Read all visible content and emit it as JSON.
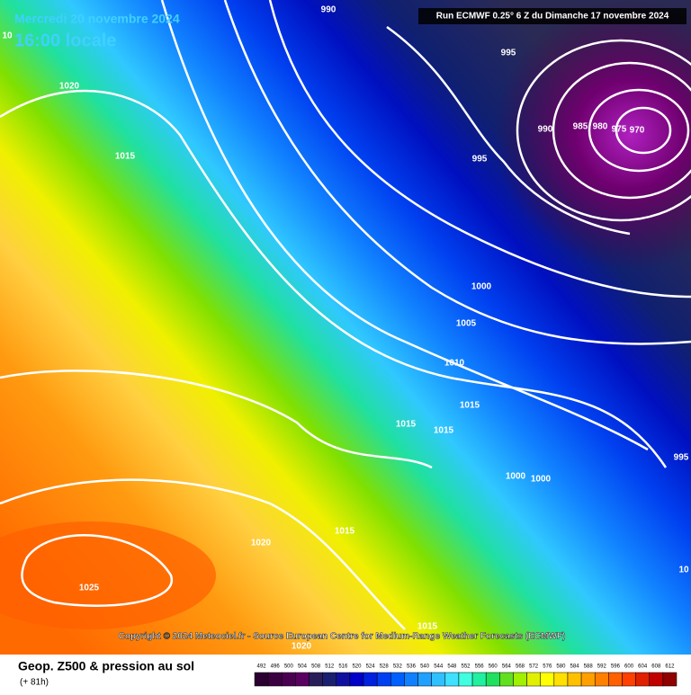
{
  "header": {
    "date": "Mercredi 20 novembre 2024",
    "time": "16:00 locale",
    "run": "Run ECMWF 0.25° 6 Z du Dimanche 17 novembre 2024"
  },
  "isobars": {
    "labels": [
      "10",
      "990",
      "1020",
      "1015",
      "995",
      "990",
      "985",
      "980",
      "975",
      "970",
      "995",
      "1000",
      "1005",
      "1010",
      "1015",
      "1015",
      "1015",
      "1000",
      "1000",
      "995",
      "10",
      "1015",
      "1020",
      "1025",
      "1015",
      "1020"
    ]
  },
  "copyright": "Copyright © 2024 Meteociel.fr - Source European Centre for Medium-Range Weather Forecasts (ECMWF)",
  "footer": {
    "title": "Geop. Z500 & pression au sol",
    "lead": "(+ 81h)"
  },
  "scale": {
    "labels": [
      "492",
      "496",
      "500",
      "504",
      "508",
      "512",
      "516",
      "520",
      "524",
      "528",
      "532",
      "536",
      "540",
      "544",
      "548",
      "552",
      "556",
      "560",
      "564",
      "568",
      "572",
      "576",
      "580",
      "584",
      "588",
      "592",
      "596",
      "600",
      "604",
      "608",
      "612"
    ],
    "colors": [
      "#2b0030",
      "#3a0040",
      "#4a0050",
      "#5a0060",
      "#2a1e5a",
      "#1a2070",
      "#1010a0",
      "#0000c8",
      "#0020e0",
      "#0040f0",
      "#0060ff",
      "#1080ff",
      "#20a0ff",
      "#30c0ff",
      "#40e0ff",
      "#40ffe0",
      "#20f0a0",
      "#20e060",
      "#60e020",
      "#a0f000",
      "#e0f000",
      "#ffff00",
      "#ffe000",
      "#ffc000",
      "#ffa000",
      "#ff8000",
      "#ff6000",
      "#ff4000",
      "#e02000",
      "#c00000",
      "#900000"
    ]
  }
}
